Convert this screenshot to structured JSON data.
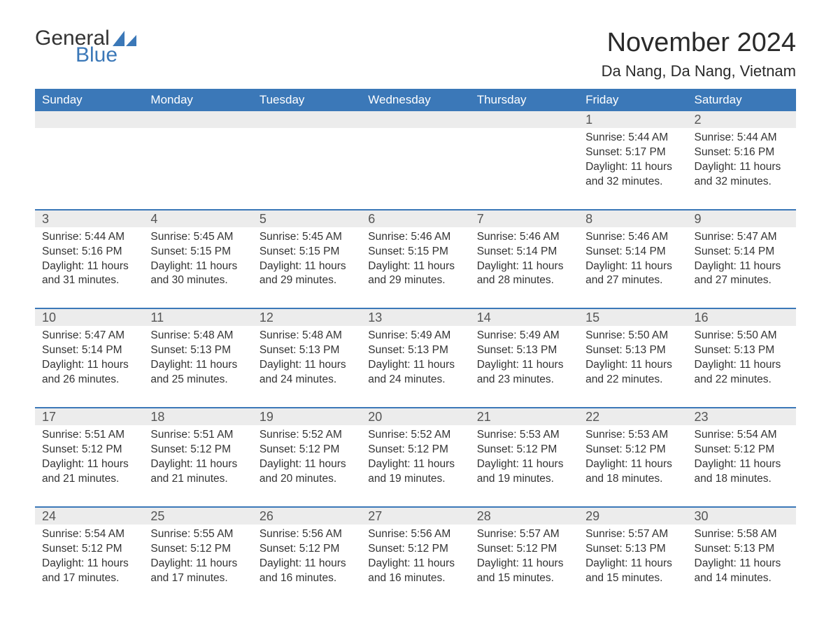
{
  "logo": {
    "text1": "General",
    "text2": "Blue",
    "sail_color": "#3b78b8",
    "text1_color": "#333333",
    "text2_color": "#3b78b8"
  },
  "header": {
    "month_title": "November 2024",
    "location": "Da Nang, Da Nang, Vietnam"
  },
  "colors": {
    "header_bg": "#3b78b8",
    "header_text": "#ffffff",
    "row_sep": "#3b78b8",
    "daynum_bg": "#ececec",
    "body_text": "#333333",
    "page_bg": "#ffffff"
  },
  "weekdays": [
    "Sunday",
    "Monday",
    "Tuesday",
    "Wednesday",
    "Thursday",
    "Friday",
    "Saturday"
  ],
  "labels": {
    "sunrise": "Sunrise:",
    "sunset": "Sunset:",
    "daylight": "Daylight:"
  },
  "weeks": [
    [
      null,
      null,
      null,
      null,
      null,
      {
        "day": "1",
        "sunrise": "5:44 AM",
        "sunset": "5:17 PM",
        "daylight": "11 hours and 32 minutes."
      },
      {
        "day": "2",
        "sunrise": "5:44 AM",
        "sunset": "5:16 PM",
        "daylight": "11 hours and 32 minutes."
      }
    ],
    [
      {
        "day": "3",
        "sunrise": "5:44 AM",
        "sunset": "5:16 PM",
        "daylight": "11 hours and 31 minutes."
      },
      {
        "day": "4",
        "sunrise": "5:45 AM",
        "sunset": "5:15 PM",
        "daylight": "11 hours and 30 minutes."
      },
      {
        "day": "5",
        "sunrise": "5:45 AM",
        "sunset": "5:15 PM",
        "daylight": "11 hours and 29 minutes."
      },
      {
        "day": "6",
        "sunrise": "5:46 AM",
        "sunset": "5:15 PM",
        "daylight": "11 hours and 29 minutes."
      },
      {
        "day": "7",
        "sunrise": "5:46 AM",
        "sunset": "5:14 PM",
        "daylight": "11 hours and 28 minutes."
      },
      {
        "day": "8",
        "sunrise": "5:46 AM",
        "sunset": "5:14 PM",
        "daylight": "11 hours and 27 minutes."
      },
      {
        "day": "9",
        "sunrise": "5:47 AM",
        "sunset": "5:14 PM",
        "daylight": "11 hours and 27 minutes."
      }
    ],
    [
      {
        "day": "10",
        "sunrise": "5:47 AM",
        "sunset": "5:14 PM",
        "daylight": "11 hours and 26 minutes."
      },
      {
        "day": "11",
        "sunrise": "5:48 AM",
        "sunset": "5:13 PM",
        "daylight": "11 hours and 25 minutes."
      },
      {
        "day": "12",
        "sunrise": "5:48 AM",
        "sunset": "5:13 PM",
        "daylight": "11 hours and 24 minutes."
      },
      {
        "day": "13",
        "sunrise": "5:49 AM",
        "sunset": "5:13 PM",
        "daylight": "11 hours and 24 minutes."
      },
      {
        "day": "14",
        "sunrise": "5:49 AM",
        "sunset": "5:13 PM",
        "daylight": "11 hours and 23 minutes."
      },
      {
        "day": "15",
        "sunrise": "5:50 AM",
        "sunset": "5:13 PM",
        "daylight": "11 hours and 22 minutes."
      },
      {
        "day": "16",
        "sunrise": "5:50 AM",
        "sunset": "5:13 PM",
        "daylight": "11 hours and 22 minutes."
      }
    ],
    [
      {
        "day": "17",
        "sunrise": "5:51 AM",
        "sunset": "5:12 PM",
        "daylight": "11 hours and 21 minutes."
      },
      {
        "day": "18",
        "sunrise": "5:51 AM",
        "sunset": "5:12 PM",
        "daylight": "11 hours and 21 minutes."
      },
      {
        "day": "19",
        "sunrise": "5:52 AM",
        "sunset": "5:12 PM",
        "daylight": "11 hours and 20 minutes."
      },
      {
        "day": "20",
        "sunrise": "5:52 AM",
        "sunset": "5:12 PM",
        "daylight": "11 hours and 19 minutes."
      },
      {
        "day": "21",
        "sunrise": "5:53 AM",
        "sunset": "5:12 PM",
        "daylight": "11 hours and 19 minutes."
      },
      {
        "day": "22",
        "sunrise": "5:53 AM",
        "sunset": "5:12 PM",
        "daylight": "11 hours and 18 minutes."
      },
      {
        "day": "23",
        "sunrise": "5:54 AM",
        "sunset": "5:12 PM",
        "daylight": "11 hours and 18 minutes."
      }
    ],
    [
      {
        "day": "24",
        "sunrise": "5:54 AM",
        "sunset": "5:12 PM",
        "daylight": "11 hours and 17 minutes."
      },
      {
        "day": "25",
        "sunrise": "5:55 AM",
        "sunset": "5:12 PM",
        "daylight": "11 hours and 17 minutes."
      },
      {
        "day": "26",
        "sunrise": "5:56 AM",
        "sunset": "5:12 PM",
        "daylight": "11 hours and 16 minutes."
      },
      {
        "day": "27",
        "sunrise": "5:56 AM",
        "sunset": "5:12 PM",
        "daylight": "11 hours and 16 minutes."
      },
      {
        "day": "28",
        "sunrise": "5:57 AM",
        "sunset": "5:12 PM",
        "daylight": "11 hours and 15 minutes."
      },
      {
        "day": "29",
        "sunrise": "5:57 AM",
        "sunset": "5:13 PM",
        "daylight": "11 hours and 15 minutes."
      },
      {
        "day": "30",
        "sunrise": "5:58 AM",
        "sunset": "5:13 PM",
        "daylight": "11 hours and 14 minutes."
      }
    ]
  ]
}
